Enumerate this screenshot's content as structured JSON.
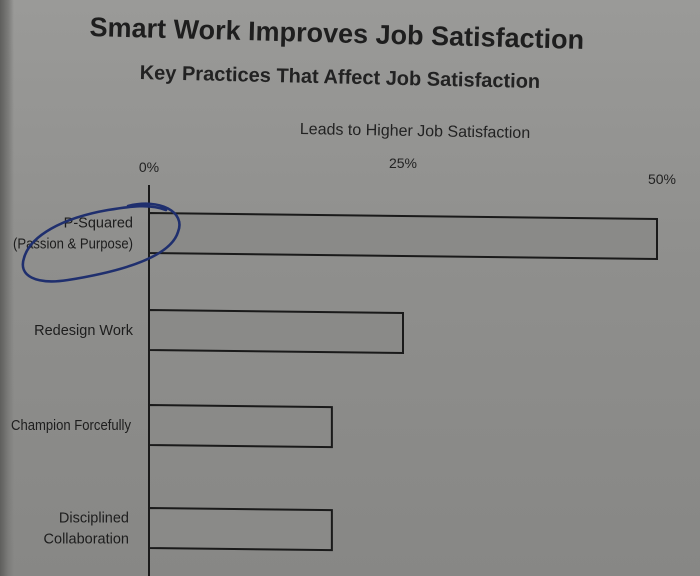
{
  "chart_data": {
    "type": "bar",
    "orientation": "horizontal",
    "title": "Smart Work Improves Job Satisfaction",
    "subtitle": "Key Practices That Affect Job Satisfaction",
    "xlabel": "Leads to Higher Job Satisfaction",
    "xlim": [
      0,
      50
    ],
    "xticks": [
      {
        "value": 0,
        "label": "0%"
      },
      {
        "value": 25,
        "label": "25%"
      },
      {
        "value": 50,
        "label": "50%"
      }
    ],
    "categories": [
      [
        "P-Squared",
        "(Passion & Purpose)"
      ],
      [
        "Redesign Work"
      ],
      [
        "Champion Forcefully"
      ],
      [
        "Disciplined",
        "Collaboration"
      ]
    ],
    "values": [
      50,
      25,
      18,
      18
    ],
    "grid": false,
    "colors": {
      "bar_fill": "#8a8a88",
      "bar_stroke": "#1a1a1a",
      "annotation": "#1f2f6e"
    },
    "annotation": "hand-drawn circle around first category"
  }
}
